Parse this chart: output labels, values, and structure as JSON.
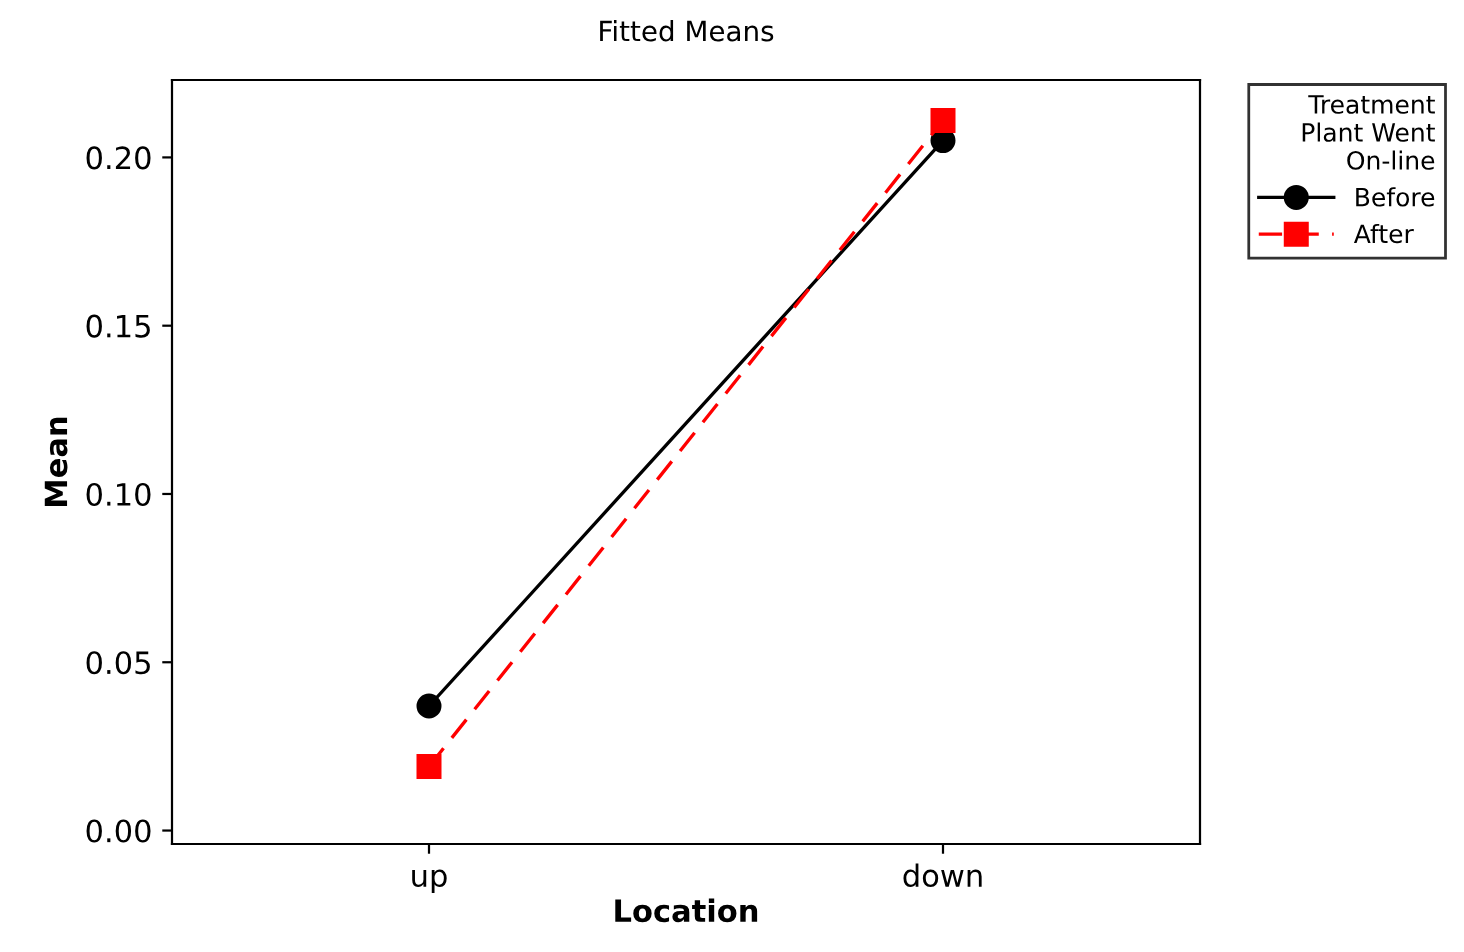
{
  "chart_data": {
    "type": "line",
    "title": "Fitted Means",
    "xlabel": "Location",
    "ylabel": "Mean",
    "categories": [
      "up",
      "down"
    ],
    "series": [
      {
        "name": "Before",
        "color": "#000000",
        "values": [
          0.037,
          0.205
        ],
        "marker": "circle",
        "line_style": "solid"
      },
      {
        "name": "After",
        "color": "#ff0000",
        "values": [
          0.019,
          0.211
        ],
        "marker": "square",
        "line_style": "dashed"
      }
    ],
    "ylim": [
      -0.004,
      0.223
    ],
    "yticks": [
      {
        "value": 0,
        "label": "0.00"
      },
      0.05,
      {
        "value": 0.1,
        "label": "0.10"
      },
      0.15,
      {
        "value": 0.2,
        "label": "0.20"
      }
    ],
    "legend": "top right",
    "legend_title": "Treatment\nPlant Went\nOn-line",
    "grid": false
  }
}
